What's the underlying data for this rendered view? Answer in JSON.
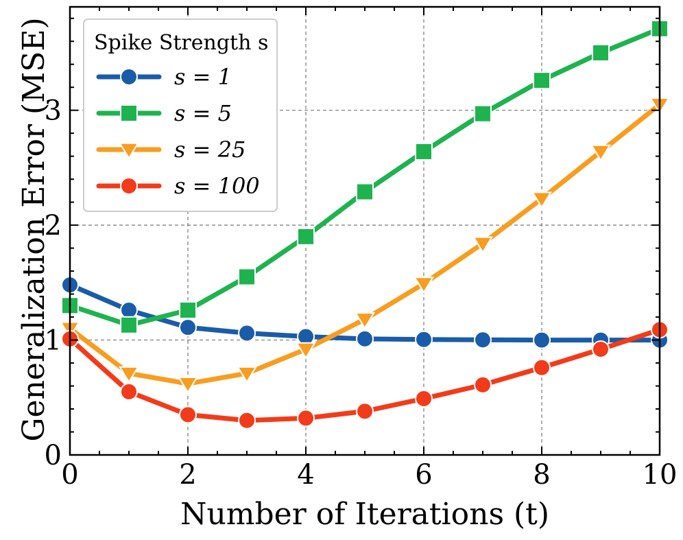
{
  "chart_data": {
    "type": "line",
    "title": "",
    "xlabel": "Number of Iterations (t)",
    "ylabel": "Generalization Error (MSE)",
    "xlim": [
      0,
      10
    ],
    "ylim": [
      0,
      3.9
    ],
    "xticks": [
      0,
      2,
      4,
      6,
      8,
      10
    ],
    "yticks": [
      0,
      1,
      2,
      3
    ],
    "grid": true,
    "legend": {
      "title": "Spike Strength s",
      "placement": "top-left"
    },
    "x": [
      0,
      1,
      2,
      3,
      4,
      5,
      6,
      7,
      8,
      9,
      10
    ],
    "series": [
      {
        "name": "s = 1",
        "color": "#1a5ca8",
        "marker": "circle",
        "values": [
          1.48,
          1.26,
          1.11,
          1.06,
          1.03,
          1.01,
          1.005,
          1.002,
          1.0,
          1.0,
          1.0
        ]
      },
      {
        "name": "s = 5",
        "color": "#1fb34f",
        "marker": "square",
        "values": [
          1.3,
          1.13,
          1.26,
          1.55,
          1.9,
          2.29,
          2.64,
          2.97,
          3.26,
          3.5,
          3.71
        ]
      },
      {
        "name": "s = 25",
        "color": "#f89d20",
        "marker": "triangle-down",
        "values": [
          1.1,
          0.71,
          0.62,
          0.71,
          0.92,
          1.18,
          1.49,
          1.84,
          2.23,
          2.64,
          3.05
        ]
      },
      {
        "name": "s = 100",
        "color": "#f23b1a",
        "marker": "circle",
        "values": [
          1.01,
          0.55,
          0.35,
          0.3,
          0.32,
          0.38,
          0.49,
          0.61,
          0.76,
          0.92,
          1.09
        ]
      }
    ]
  }
}
